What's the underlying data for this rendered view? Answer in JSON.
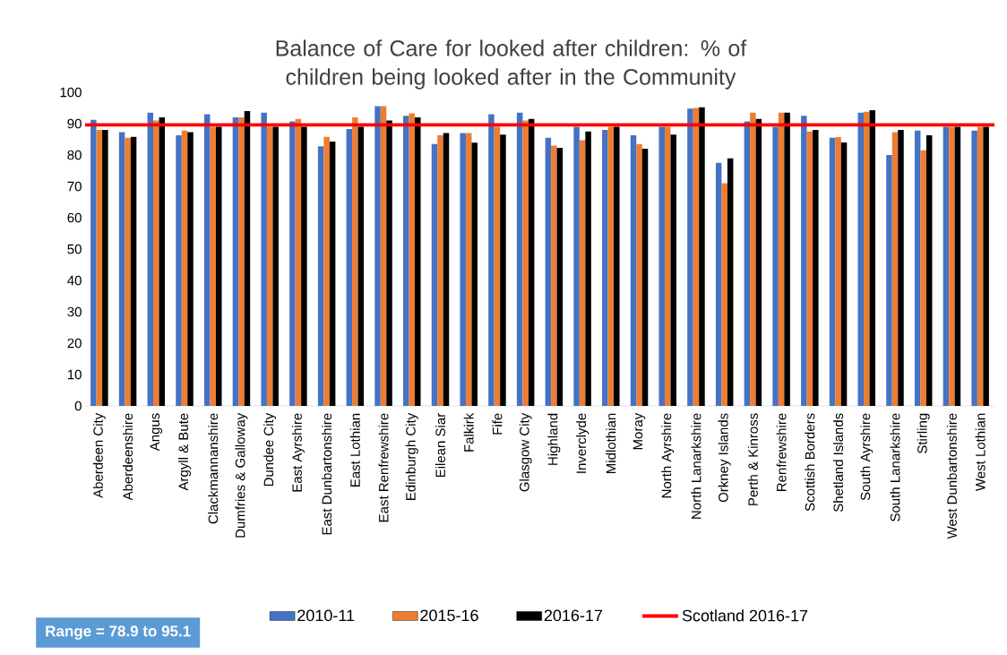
{
  "chart_data": {
    "type": "bar",
    "title": "Balance of Care for looked after children: % of children being looked after in the Community",
    "categories": [
      "Aberdeen City",
      "Aberdeenshire",
      "Angus",
      "Argyll & Bute",
      "Clackmannanshire",
      "Dumfries & Galloway",
      "Dundee City",
      "East Ayrshire",
      "East Dunbartonshire",
      "East Lothian",
      "East Renfrewshire",
      "Edinburgh City",
      "Eilean Siar",
      "Falkirk",
      "Fife",
      "Glasgow City",
      "Highland",
      "Inverclyde",
      "Midlothian",
      "Moray",
      "North Ayrshire",
      "North Lanarkshire",
      "Orkney Islands",
      "Perth & Kinross",
      "Renfrewshire",
      "Scottish Borders",
      "Shetland Islands",
      "South Ayrshire",
      "South Lanarkshire",
      "Stirling",
      "West Dunbartonshire",
      "West Lothian"
    ],
    "series": [
      {
        "name": "2010-11",
        "color": "#4472c4",
        "values": [
          91.2,
          87.3,
          93.5,
          86.3,
          93,
          92,
          93.5,
          90.7,
          82.8,
          88.3,
          95.6,
          92.5,
          83.5,
          87,
          93,
          93.5,
          85.5,
          89,
          88,
          86.3,
          89,
          94.8,
          77.5,
          90.7,
          89,
          92.5,
          85.5,
          93.5,
          80,
          87.8,
          89,
          87.8
        ]
      },
      {
        "name": "2015-16",
        "color": "#ed7d31",
        "values": [
          88,
          85.5,
          91,
          87.8,
          89,
          92,
          89,
          91.5,
          85.8,
          92,
          95.6,
          93.3,
          86.3,
          87,
          89,
          91,
          83,
          84.7,
          89,
          83.5,
          89,
          95,
          71,
          93.5,
          93.5,
          87.5,
          85.7,
          93.8,
          87.3,
          81.5,
          89,
          89
        ]
      },
      {
        "name": "2016-17",
        "color": "#000000",
        "values": [
          88,
          85.8,
          92,
          87.3,
          89,
          94,
          89,
          89,
          84.3,
          89,
          91,
          92,
          87,
          83.9,
          86.5,
          91.5,
          82.3,
          87.5,
          89,
          82,
          86.5,
          95.3,
          78.9,
          91.5,
          93.5,
          88,
          84,
          94.3,
          88,
          86.3,
          89,
          89
        ]
      }
    ],
    "ylim": [
      0,
      100
    ],
    "yticks": [
      0,
      10,
      20,
      30,
      40,
      50,
      60,
      70,
      80,
      90,
      100
    ],
    "ref_lines": [
      {
        "axis": "y",
        "value": 89.6,
        "label": "Scotland 2016-17",
        "color": "#ff0000"
      }
    ],
    "legend": "bottom",
    "annotations": [
      "Range = 78.9 to 95.1"
    ]
  }
}
